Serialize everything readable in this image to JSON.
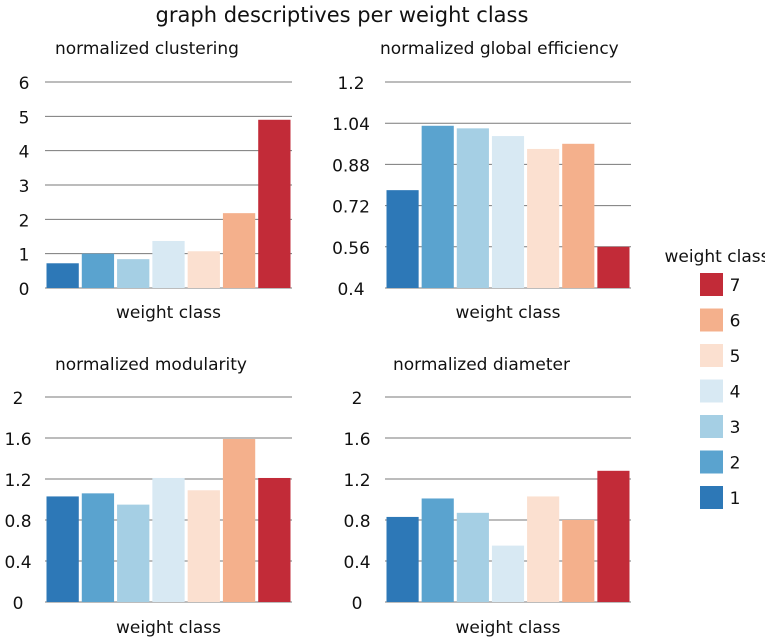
{
  "figure": {
    "title": "graph descriptives per weight class"
  },
  "legend": {
    "title": "weight class",
    "entries": [
      {
        "label": "7",
        "color": "#c22b38"
      },
      {
        "label": "6",
        "color": "#f4b08c"
      },
      {
        "label": "5",
        "color": "#fbe0d0"
      },
      {
        "label": "4",
        "color": "#d8e9f3"
      },
      {
        "label": "3",
        "color": "#a5cfe4"
      },
      {
        "label": "2",
        "color": "#5aa3cf"
      },
      {
        "label": "1",
        "color": "#2d78b7"
      }
    ]
  },
  "chart_data": [
    {
      "type": "bar",
      "title": "normalized clustering",
      "xlabel": "weight class",
      "ylabel": "",
      "categories": [
        "1",
        "2",
        "3",
        "4",
        "5",
        "6",
        "7"
      ],
      "values": [
        0.72,
        1.0,
        0.84,
        1.37,
        1.07,
        2.18,
        4.9
      ],
      "ylim": [
        0,
        6
      ],
      "yticks": [
        0,
        1,
        2,
        3,
        4,
        5,
        6
      ],
      "ytick_labels": [
        "0",
        "1",
        "2",
        "3",
        "4",
        "5",
        "6"
      ],
      "grid": "horizontal"
    },
    {
      "type": "bar",
      "title": "normalized global efficiency",
      "xlabel": "weight class",
      "ylabel": "",
      "categories": [
        "1",
        "2",
        "3",
        "4",
        "5",
        "6",
        "7"
      ],
      "values": [
        0.78,
        1.03,
        1.02,
        0.99,
        0.94,
        0.96,
        0.56
      ],
      "ylim": [
        0.4,
        1.2
      ],
      "yticks": [
        0.4,
        0.56,
        0.72,
        0.88,
        1.04,
        1.2
      ],
      "ytick_labels": [
        "0.4",
        "0.56",
        "0.72",
        "0.88",
        "1.04",
        "1.2"
      ],
      "grid": "horizontal"
    },
    {
      "type": "bar",
      "title": "normalized modularity",
      "xlabel": "weight class",
      "ylabel": "",
      "categories": [
        "1",
        "2",
        "3",
        "4",
        "5",
        "6",
        "7"
      ],
      "values": [
        1.03,
        1.06,
        0.95,
        1.21,
        1.09,
        1.59,
        1.21
      ],
      "ylim": [
        0,
        2
      ],
      "yticks": [
        0,
        0.4,
        0.8,
        1.2,
        1.6,
        2
      ],
      "ytick_labels": [
        "0",
        "0.4",
        "0.8",
        "1.2",
        "1.6",
        "2"
      ],
      "grid": "horizontal"
    },
    {
      "type": "bar",
      "title": "normalized diameter",
      "xlabel": "weight class",
      "ylabel": "",
      "categories": [
        "1",
        "2",
        "3",
        "4",
        "5",
        "6",
        "7"
      ],
      "values": [
        0.83,
        1.01,
        0.87,
        0.55,
        1.03,
        0.8,
        1.28
      ],
      "ylim": [
        0,
        2
      ],
      "yticks": [
        0,
        0.4,
        0.8,
        1.2,
        1.6,
        2
      ],
      "ytick_labels": [
        "0",
        "0.4",
        "0.8",
        "1.2",
        "1.6",
        "2"
      ],
      "grid": "horizontal"
    }
  ]
}
